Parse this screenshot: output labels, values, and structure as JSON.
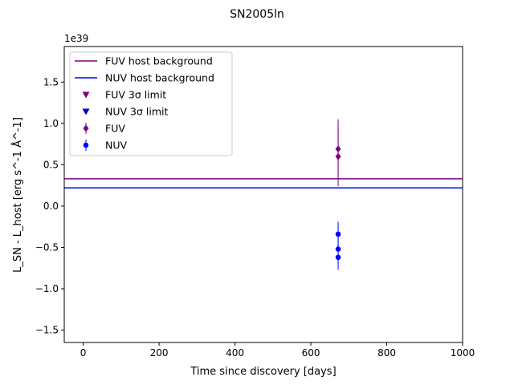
{
  "chart_data": {
    "type": "scatter",
    "title": "SN2005ln",
    "xlabel": "Time since discovery [days]",
    "ylabel": "L_SN - L_host [erg s^-1 Å^-1]",
    "y_scale_label": "1e39",
    "xlim": [
      -50,
      1000
    ],
    "ylim": [
      -1.65,
      1.93
    ],
    "x_ticks": [
      0,
      200,
      400,
      600,
      800,
      1000
    ],
    "x_tick_labels": [
      "0",
      "200",
      "400",
      "600",
      "800",
      "1000"
    ],
    "y_ticks": [
      -1.5,
      -1.0,
      -0.5,
      0.0,
      0.5,
      1.0,
      1.5
    ],
    "y_tick_labels": [
      "−1.5",
      "−1.0",
      "−0.5",
      "0.0",
      "0.5",
      "1.0",
      "1.5"
    ],
    "grid": false,
    "legend_position": "top-left",
    "legend": [
      {
        "label": "FUV host background",
        "kind": "line",
        "color": "#7f007f"
      },
      {
        "label": "NUV host background",
        "kind": "line",
        "color": "#0000ff"
      },
      {
        "label": "FUV 3σ limit",
        "kind": "triangle",
        "color": "#7f007f"
      },
      {
        "label": "NUV 3σ limit",
        "kind": "triangle",
        "color": "#0000cc"
      },
      {
        "label": "FUV",
        "kind": "diamond",
        "color": "#7f007f"
      },
      {
        "label": "NUV",
        "kind": "circle",
        "color": "#0000ff"
      }
    ],
    "hlines": [
      {
        "name": "FUV host background",
        "y": 0.33,
        "color": "#7f007f"
      },
      {
        "name": "NUV host background",
        "y": 0.22,
        "color": "#0000ff"
      }
    ],
    "series": [
      {
        "name": "FUV",
        "marker": "diamond",
        "color": "#7f007f",
        "points": [
          {
            "x": 672,
            "y": 0.69,
            "yerr": 0.36
          },
          {
            "x": 672,
            "y": 0.6,
            "yerr": 0.36
          }
        ]
      },
      {
        "name": "NUV",
        "marker": "circle",
        "color": "#0000ff",
        "points": [
          {
            "x": 672,
            "y": -0.34,
            "yerr": 0.15
          },
          {
            "x": 672,
            "y": -0.52,
            "yerr": 0.15
          },
          {
            "x": 672,
            "y": -0.62,
            "yerr": 0.15
          }
        ]
      }
    ]
  }
}
